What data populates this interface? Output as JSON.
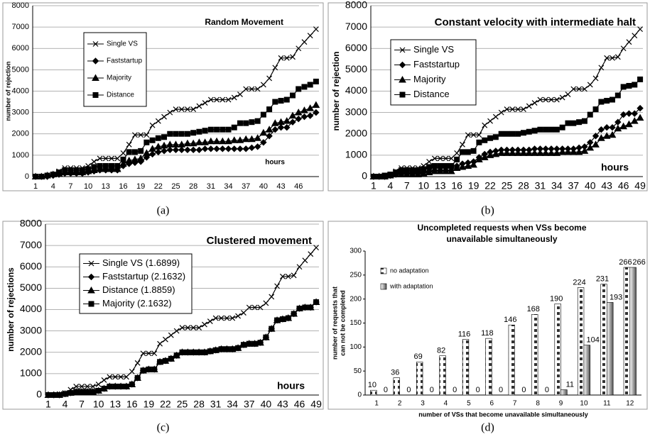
{
  "chart_data": [
    {
      "type": "line",
      "title": "Random Movement",
      "caption": "(a)",
      "ylabel": "number of rejection",
      "annotation": "hours",
      "categories": [
        "1",
        null,
        null,
        "4",
        null,
        null,
        "7",
        null,
        null,
        "10",
        null,
        null,
        "13",
        null,
        null,
        "16",
        null,
        null,
        "19",
        null,
        null,
        "22",
        null,
        null,
        "25",
        null,
        null,
        "28",
        null,
        null,
        "31",
        null,
        null,
        "34",
        null,
        null,
        "37",
        null,
        null,
        "40",
        null,
        null,
        "43",
        null,
        null,
        "46",
        null,
        null,
        null
      ],
      "ylim": [
        0,
        8000
      ],
      "yticks": [
        0,
        1000,
        2000,
        3000,
        4000,
        5000,
        6000,
        7000,
        8000
      ],
      "grid": true,
      "series": [
        {
          "name": "Single VS",
          "color": "#000000",
          "marker": "cross",
          "values": [
            0,
            0,
            50,
            100,
            250,
            400,
            400,
            400,
            400,
            500,
            700,
            850,
            850,
            850,
            850,
            1100,
            1500,
            1950,
            1950,
            1950,
            2400,
            2600,
            2800,
            3000,
            3150,
            3150,
            3150,
            3150,
            3300,
            3450,
            3600,
            3600,
            3600,
            3600,
            3700,
            3850,
            4100,
            4100,
            4100,
            4300,
            4600,
            5100,
            5550,
            5550,
            5600,
            6000,
            6300,
            6600,
            6900
          ]
        },
        {
          "name": "Faststartup",
          "color": "#000000",
          "marker": "diamond",
          "values": [
            0,
            0,
            0,
            50,
            100,
            150,
            150,
            150,
            150,
            200,
            250,
            300,
            300,
            300,
            300,
            500,
            600,
            650,
            700,
            900,
            1050,
            1150,
            1200,
            1250,
            1250,
            1250,
            1250,
            1250,
            1250,
            1300,
            1300,
            1300,
            1300,
            1300,
            1300,
            1300,
            1300,
            1350,
            1400,
            1600,
            1900,
            2200,
            2300,
            2300,
            2550,
            2700,
            2800,
            2850,
            3000
          ]
        },
        {
          "name": "Majority",
          "color": "#000000",
          "marker": "triangle",
          "values": [
            0,
            0,
            50,
            100,
            150,
            200,
            200,
            200,
            200,
            250,
            300,
            350,
            350,
            350,
            350,
            600,
            750,
            800,
            850,
            1100,
            1300,
            1400,
            1450,
            1500,
            1500,
            1500,
            1550,
            1550,
            1600,
            1600,
            1650,
            1650,
            1650,
            1650,
            1700,
            1700,
            1750,
            1750,
            1800,
            2050,
            2200,
            2500,
            2550,
            2600,
            2850,
            3000,
            3100,
            3200,
            3350
          ]
        },
        {
          "name": "Distance",
          "color": "#000000",
          "marker": "square",
          "values": [
            0,
            0,
            50,
            100,
            200,
            300,
            300,
            300,
            300,
            350,
            450,
            500,
            500,
            500,
            500,
            800,
            1150,
            1150,
            1200,
            1600,
            1700,
            1800,
            1850,
            2000,
            2000,
            2000,
            2000,
            2050,
            2100,
            2150,
            2200,
            2200,
            2200,
            2200,
            2300,
            2500,
            2500,
            2550,
            2600,
            2900,
            3150,
            3500,
            3550,
            3600,
            3800,
            4100,
            4200,
            4300,
            4450
          ]
        }
      ]
    },
    {
      "type": "line",
      "title": "Constant velocity with intermediate halt",
      "caption": "(b)",
      "ylabel": "number of rejection",
      "annotation": "hours",
      "categories": [
        "1",
        null,
        null,
        "4",
        null,
        null,
        "7",
        null,
        null,
        "10",
        null,
        null,
        "13",
        null,
        null,
        "16",
        null,
        null,
        "19",
        null,
        null,
        "22",
        null,
        null,
        "25",
        null,
        null,
        "28",
        null,
        null,
        "31",
        null,
        null,
        "34",
        null,
        null,
        "37",
        null,
        null,
        "40",
        null,
        null,
        "43",
        null,
        null,
        "46",
        null,
        null,
        "49"
      ],
      "ylim": [
        0,
        8000
      ],
      "yticks": [
        0,
        1000,
        2000,
        3000,
        4000,
        5000,
        6000,
        7000,
        8000
      ],
      "grid": true,
      "series": [
        {
          "name": "Single VS",
          "color": "#000000",
          "marker": "cross",
          "values": [
            0,
            0,
            50,
            100,
            250,
            400,
            400,
            400,
            400,
            500,
            700,
            850,
            850,
            850,
            850,
            1100,
            1500,
            1950,
            1950,
            1950,
            2400,
            2600,
            2800,
            3000,
            3150,
            3150,
            3150,
            3150,
            3300,
            3450,
            3600,
            3600,
            3600,
            3600,
            3700,
            3850,
            4100,
            4100,
            4100,
            4300,
            4600,
            5100,
            5550,
            5550,
            5600,
            6000,
            6300,
            6600,
            6900
          ]
        },
        {
          "name": "Faststartup",
          "color": "#000000",
          "marker": "diamond",
          "values": [
            0,
            0,
            0,
            50,
            100,
            150,
            150,
            150,
            150,
            200,
            250,
            300,
            300,
            300,
            300,
            500,
            600,
            650,
            700,
            900,
            1050,
            1150,
            1200,
            1250,
            1250,
            1250,
            1250,
            1250,
            1250,
            1300,
            1300,
            1300,
            1300,
            1300,
            1300,
            1300,
            1300,
            1350,
            1400,
            1600,
            1900,
            2200,
            2300,
            2300,
            2550,
            2900,
            2950,
            2950,
            3200
          ]
        },
        {
          "name": "Majority",
          "color": "#000000",
          "marker": "triangle",
          "values": [
            0,
            0,
            0,
            50,
            100,
            100,
            100,
            100,
            100,
            150,
            200,
            250,
            250,
            250,
            250,
            400,
            450,
            500,
            550,
            800,
            900,
            1000,
            1050,
            1100,
            1100,
            1100,
            1100,
            1100,
            1100,
            1100,
            1100,
            1100,
            1100,
            1100,
            1150,
            1150,
            1150,
            1150,
            1200,
            1350,
            1500,
            1800,
            1900,
            1950,
            2250,
            2350,
            2450,
            2600,
            2750
          ]
        },
        {
          "name": "Distance",
          "color": "#000000",
          "marker": "square",
          "values": [
            0,
            0,
            50,
            100,
            200,
            300,
            300,
            300,
            300,
            350,
            450,
            500,
            500,
            500,
            500,
            800,
            1150,
            1150,
            1200,
            1600,
            1700,
            1800,
            1850,
            2000,
            2000,
            2000,
            2000,
            2050,
            2100,
            2150,
            2200,
            2200,
            2200,
            2200,
            2300,
            2500,
            2500,
            2550,
            2600,
            2900,
            3150,
            3500,
            3550,
            3600,
            3800,
            4200,
            4250,
            4300,
            4550
          ]
        }
      ]
    },
    {
      "type": "line",
      "title": "Clustered movement",
      "caption": "(c)",
      "ylabel": "number of rejections",
      "annotation": "hours",
      "categories": [
        "1",
        null,
        null,
        "4",
        null,
        null,
        "7",
        null,
        null,
        "10",
        null,
        null,
        "13",
        null,
        null,
        "16",
        null,
        null,
        "19",
        null,
        null,
        "22",
        null,
        null,
        "25",
        null,
        null,
        "28",
        null,
        null,
        "31",
        null,
        null,
        "34",
        null,
        null,
        "37",
        null,
        null,
        "40",
        null,
        null,
        "43",
        null,
        null,
        "46",
        null,
        null,
        "49"
      ],
      "ylim": [
        0,
        8000
      ],
      "yticks": [
        0,
        1000,
        2000,
        3000,
        4000,
        5000,
        6000,
        7000,
        8000
      ],
      "grid": true,
      "series": [
        {
          "name": "Single VS (1.6899)",
          "color": "#000000",
          "marker": "cross",
          "values": [
            0,
            0,
            50,
            100,
            250,
            400,
            400,
            400,
            400,
            500,
            700,
            850,
            850,
            850,
            850,
            1100,
            1500,
            1950,
            1950,
            1950,
            2400,
            2600,
            2800,
            3000,
            3150,
            3150,
            3150,
            3150,
            3300,
            3450,
            3600,
            3600,
            3600,
            3600,
            3700,
            3850,
            4100,
            4100,
            4100,
            4300,
            4600,
            5100,
            5550,
            5550,
            5600,
            6000,
            6300,
            6600,
            6900
          ]
        },
        {
          "name": "Faststartup (2.1632)",
          "color": "#000000",
          "marker": "diamond",
          "values": [
            0,
            0,
            0,
            50,
            100,
            150,
            150,
            150,
            150,
            200,
            300,
            400,
            400,
            400,
            400,
            500,
            800,
            1150,
            1200,
            1200,
            1550,
            1600,
            1700,
            1850,
            2000,
            2000,
            2000,
            2000,
            2000,
            2050,
            2100,
            2150,
            2150,
            2150,
            2200,
            2350,
            2400,
            2400,
            2450,
            2700,
            3100,
            3500,
            3550,
            3600,
            3800,
            4050,
            4100,
            4100,
            4350
          ]
        },
        {
          "name": "Distance (1.8859)",
          "color": "#000000",
          "marker": "triangle",
          "values": [
            0,
            0,
            0,
            50,
            100,
            150,
            150,
            150,
            150,
            200,
            300,
            400,
            400,
            400,
            400,
            500,
            800,
            1150,
            1200,
            1200,
            1550,
            1600,
            1700,
            1850,
            2000,
            2000,
            2000,
            2000,
            2000,
            2050,
            2100,
            2150,
            2150,
            2150,
            2200,
            2350,
            2400,
            2400,
            2450,
            2700,
            3100,
            3500,
            3550,
            3600,
            3800,
            4050,
            4100,
            4100,
            4350
          ]
        },
        {
          "name": "Majority (2.1632)",
          "color": "#000000",
          "marker": "square",
          "values": [
            0,
            0,
            0,
            50,
            100,
            150,
            150,
            150,
            150,
            200,
            300,
            400,
            400,
            400,
            400,
            500,
            800,
            1150,
            1200,
            1200,
            1550,
            1600,
            1700,
            1850,
            2000,
            2000,
            2000,
            2000,
            2000,
            2050,
            2100,
            2150,
            2150,
            2150,
            2200,
            2350,
            2400,
            2400,
            2450,
            2700,
            3100,
            3500,
            3550,
            3600,
            3800,
            4050,
            4100,
            4100,
            4350
          ]
        }
      ]
    },
    {
      "type": "bar",
      "title": [
        "Uncompleted requests when VSs become",
        "unavailable simultaneously"
      ],
      "caption": "(d)",
      "ylabel": [
        "number of requests that",
        "can not be completed"
      ],
      "xlabel": "number of VSs that become unavailable simultaneously",
      "categories": [
        "1",
        "2",
        "3",
        "4",
        "5",
        "6",
        "7",
        "8",
        "9",
        "10",
        "11",
        "12"
      ],
      "ylim": [
        0,
        300
      ],
      "yticks": [
        0,
        50,
        100,
        150,
        200,
        250,
        300
      ],
      "grid": false,
      "series": [
        {
          "name": "no adaptation",
          "color": "#333333",
          "fill": "checker",
          "values": [
            10,
            36,
            69,
            82,
            116,
            118,
            146,
            168,
            190,
            224,
            231,
            266
          ]
        },
        {
          "name": "with adaptation",
          "color": "#555555",
          "fill": "gradient",
          "values": [
            0,
            0,
            0,
            0,
            0,
            0,
            0,
            0,
            11,
            104,
            193,
            266
          ]
        }
      ]
    }
  ]
}
